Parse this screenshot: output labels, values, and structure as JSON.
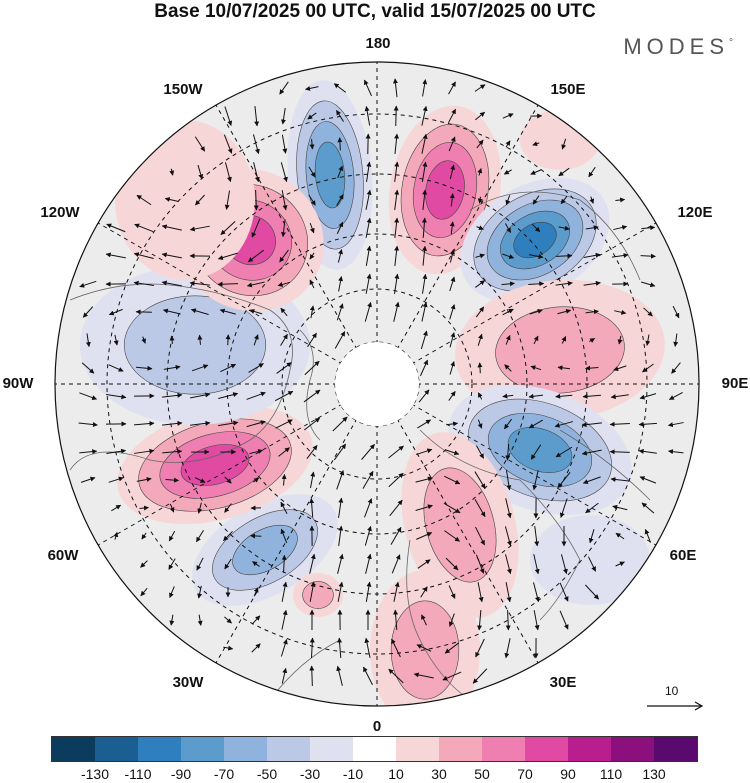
{
  "header": {
    "title": "Base 10/07/2025 00 UTC, valid 15/07/2025 00 UTC",
    "brand": "MODES"
  },
  "map": {
    "projection": "polar-stereographic-north",
    "longitude_labels": [
      "180",
      "150E",
      "120E",
      "90E",
      "60E",
      "30E",
      "0",
      "30W",
      "60W",
      "90W",
      "120W",
      "150W"
    ],
    "grid": true,
    "reference_vector": {
      "label": "10"
    }
  },
  "colorbar": {
    "labels": [
      "-130",
      "-110",
      "-90",
      "-70",
      "-50",
      "-30",
      "-10",
      "10",
      "30",
      "50",
      "70",
      "90",
      "110",
      "130"
    ],
    "colors": [
      "#0b3c5d",
      "#1b5f92",
      "#2f7fbf",
      "#5b9ccd",
      "#8fb3dc",
      "#bcc9e6",
      "#dfe1f0",
      "#ffffff",
      "#f7d6d8",
      "#f3a9b9",
      "#ee7fb0",
      "#e04aa2",
      "#b91e8e",
      "#8b0f7d",
      "#5a0a6e"
    ]
  }
}
